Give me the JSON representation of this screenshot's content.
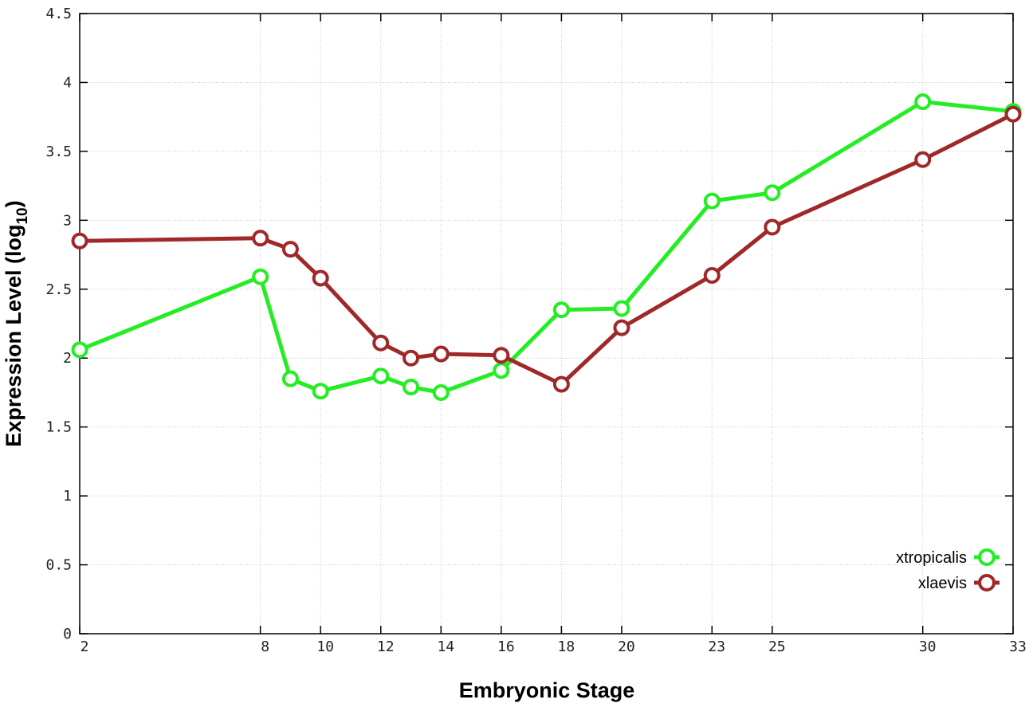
{
  "chart_data": {
    "type": "line",
    "xlabel": "Embryonic Stage",
    "ylabel": {
      "main": "Expression Level (log",
      "sub": "10",
      "close": ")"
    },
    "x": [
      2,
      8,
      9,
      10,
      12,
      13,
      14,
      16,
      18,
      20,
      23,
      25,
      30,
      33
    ],
    "x_ticks": [
      2,
      8,
      10,
      12,
      14,
      16,
      18,
      20,
      23,
      25,
      30,
      33
    ],
    "y_ticks": [
      "0",
      "0.5",
      "1",
      "1.5",
      "2",
      "2.5",
      "3",
      "3.5",
      "4",
      "4.5"
    ],
    "xlim": [
      2,
      33
    ],
    "ylim": [
      0,
      4.5
    ],
    "grid": true,
    "legend_position": "bottom-right",
    "series": [
      {
        "name": "xtropicalis",
        "color": "#22ee22",
        "values": [
          2.06,
          2.59,
          1.85,
          1.76,
          1.87,
          1.79,
          1.75,
          1.91,
          2.35,
          2.36,
          3.14,
          3.2,
          3.86,
          3.79
        ]
      },
      {
        "name": "xlaevis",
        "color": "#a02828",
        "values": [
          2.85,
          2.87,
          2.79,
          2.58,
          2.11,
          2.0,
          2.03,
          2.02,
          1.81,
          2.22,
          2.6,
          2.95,
          3.44,
          3.77
        ]
      }
    ]
  }
}
